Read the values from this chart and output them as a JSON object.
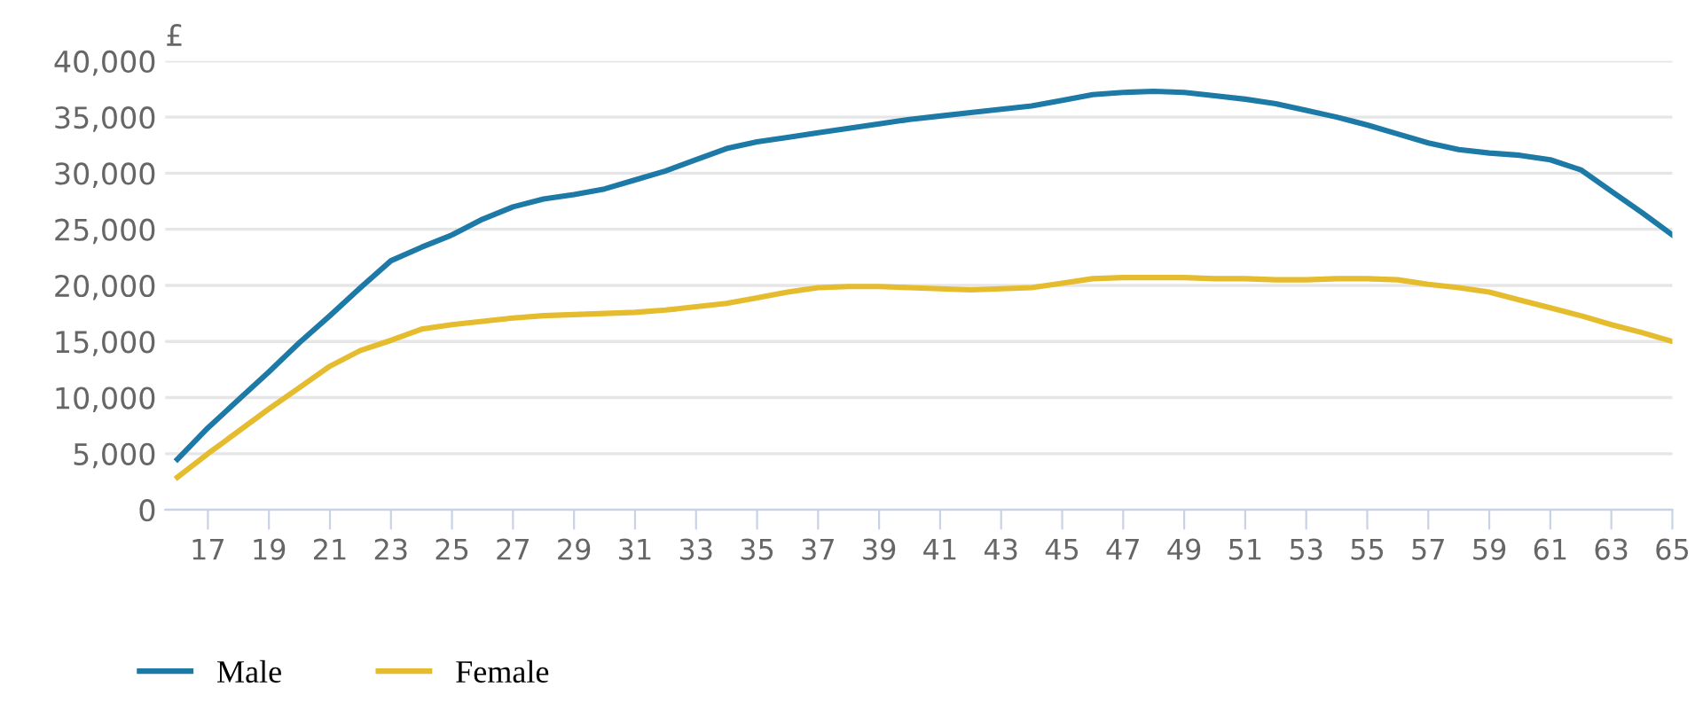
{
  "chart_data": {
    "type": "line",
    "ylabel": "£",
    "x": [
      16,
      17,
      18,
      19,
      20,
      21,
      22,
      23,
      24,
      25,
      26,
      27,
      28,
      29,
      30,
      31,
      32,
      33,
      34,
      35,
      36,
      37,
      38,
      39,
      40,
      41,
      42,
      43,
      44,
      45,
      46,
      47,
      48,
      49,
      50,
      51,
      52,
      53,
      54,
      55,
      56,
      57,
      58,
      59,
      60,
      61,
      62,
      63,
      64,
      65
    ],
    "series": [
      {
        "name": "Male",
        "color": "#1d7aa6",
        "values": [
          4500,
          7300,
          9800,
          12300,
          14900,
          17300,
          19800,
          22200,
          23400,
          24500,
          25900,
          27000,
          27700,
          28100,
          28600,
          29400,
          30200,
          31200,
          32200,
          32800,
          33200,
          33600,
          34000,
          34400,
          34800,
          35100,
          35400,
          35700,
          36000,
          36500,
          37000,
          37200,
          37300,
          37200,
          36900,
          36600,
          36200,
          35600,
          35000,
          34300,
          33500,
          32700,
          32100,
          31800,
          31600,
          31200,
          30300,
          28400,
          26500,
          24500
        ]
      },
      {
        "name": "Female",
        "color": "#e6bc2f",
        "values": [
          2900,
          5000,
          7000,
          9000,
          10900,
          12800,
          14200,
          15100,
          16100,
          16500,
          16800,
          17100,
          17300,
          17400,
          17500,
          17600,
          17800,
          18100,
          18400,
          18900,
          19400,
          19800,
          19900,
          19900,
          19800,
          19700,
          19600,
          19700,
          19800,
          20200,
          20600,
          20700,
          20700,
          20700,
          20600,
          20600,
          20500,
          20500,
          20600,
          20600,
          20500,
          20100,
          19800,
          19400,
          18700,
          18000,
          17300,
          16500,
          15800,
          15000
        ]
      }
    ],
    "xlim": [
      15.6,
      65
    ],
    "ylim": [
      0,
      40000
    ],
    "xticks": [
      17,
      19,
      21,
      23,
      25,
      27,
      29,
      31,
      33,
      35,
      37,
      39,
      41,
      43,
      45,
      47,
      49,
      51,
      53,
      55,
      57,
      59,
      61,
      63,
      65
    ],
    "yticks": [
      {
        "value": 0,
        "label": "0"
      },
      {
        "value": 5000,
        "label": "5,000"
      },
      {
        "value": 10000,
        "label": "10,000"
      },
      {
        "value": 15000,
        "label": "15,000"
      },
      {
        "value": 20000,
        "label": "20,000"
      },
      {
        "value": 25000,
        "label": "25,000"
      },
      {
        "value": 30000,
        "label": "30,000"
      },
      {
        "value": 35000,
        "label": "35,000"
      },
      {
        "value": 40000,
        "label": "40,000"
      }
    ],
    "grid": "y",
    "legend": "bottom left",
    "marker": "none",
    "line_style": "solid"
  }
}
